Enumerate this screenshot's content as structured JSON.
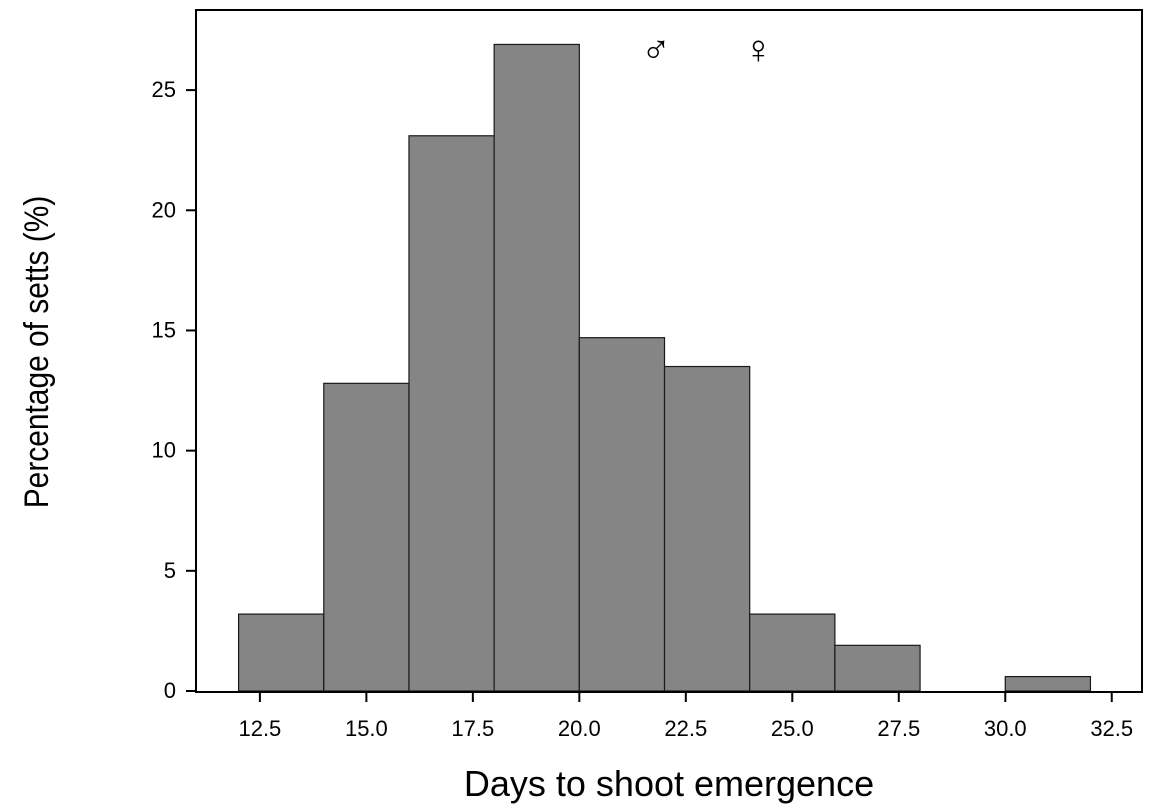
{
  "chart_data": {
    "type": "bar",
    "subtype": "histogram",
    "title": "",
    "xlabel": "Days to shoot emergence",
    "ylabel": "Percentage of setts (%)",
    "bins": [
      {
        "start": 12,
        "end": 14,
        "value": 3.2
      },
      {
        "start": 14,
        "end": 16,
        "value": 12.8
      },
      {
        "start": 16,
        "end": 18,
        "value": 23.1
      },
      {
        "start": 18,
        "end": 20,
        "value": 26.9
      },
      {
        "start": 20,
        "end": 22,
        "value": 14.7
      },
      {
        "start": 22,
        "end": 24,
        "value": 13.5
      },
      {
        "start": 24,
        "end": 26,
        "value": 3.2
      },
      {
        "start": 26,
        "end": 28,
        "value": 1.9
      },
      {
        "start": 28,
        "end": 30,
        "value": 0
      },
      {
        "start": 30,
        "end": 32,
        "value": 0.6
      }
    ],
    "xlim": [
      11,
      32.6
    ],
    "ylim": [
      0,
      28
    ],
    "xticks": [
      12.5,
      15.0,
      17.5,
      20.0,
      22.5,
      25.0,
      27.5,
      30.0,
      32.5
    ],
    "xtick_labels": [
      "12.5",
      "15.0",
      "17.5",
      "20.0",
      "22.5",
      "25.0",
      "27.5",
      "30.0",
      "32.5"
    ],
    "yticks": [
      0,
      5,
      10,
      15,
      20,
      25
    ],
    "ytick_labels": [
      "0",
      "5",
      "10",
      "15",
      "20",
      "25"
    ],
    "annotations": [
      {
        "text": "♂",
        "x": 21.8,
        "y": 26.8,
        "meaning": "male"
      },
      {
        "text": "♀",
        "x": 24.2,
        "y": 26.8,
        "meaning": "female"
      }
    ],
    "grid": false,
    "legend": "none",
    "colors": {
      "bar_fill": "#858585",
      "bar_stroke": "#1a1a1a",
      "axis": "#000000"
    }
  }
}
